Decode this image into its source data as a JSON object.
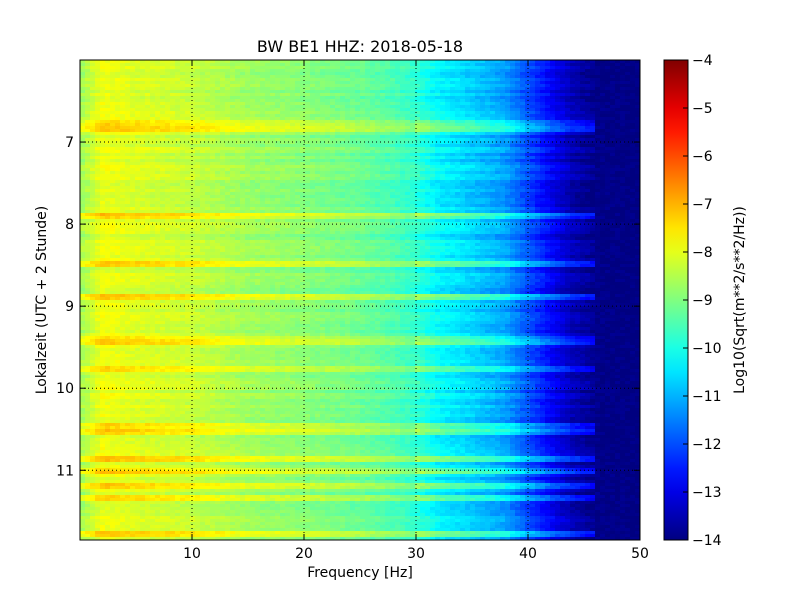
{
  "chart_data": {
    "type": "heatmap",
    "title": "BW BE1 HHZ: 2018-05-18",
    "xlabel": "Frequency [Hz]",
    "ylabel": "Lokalzeit (UTC + 2 Stunde)",
    "xlim": [
      0,
      50
    ],
    "ylim": [
      6.0,
      11.85
    ],
    "y_inverted": true,
    "x_ticks": [
      10,
      20,
      30,
      40,
      50
    ],
    "x_tick_labels": [
      "10",
      "20",
      "30",
      "40",
      "50"
    ],
    "y_ticks": [
      7,
      8,
      9,
      10,
      11
    ],
    "y_tick_labels": [
      "7",
      "8",
      "9",
      "10",
      "11"
    ],
    "grid": true,
    "colormap": "jet",
    "colorbar": {
      "label": "Log10(Sqrt(m**2/s**2/Hz))",
      "range": [
        -14,
        -4
      ],
      "ticks": [
        -4,
        -5,
        -6,
        -7,
        -8,
        -9,
        -10,
        -11,
        -12,
        -13,
        -14
      ],
      "tick_labels": [
        "−4",
        "−5",
        "−6",
        "−7",
        "−8",
        "−9",
        "−10",
        "−11",
        "−12",
        "−13",
        "−14"
      ]
    },
    "spectral_profile": {
      "frequency_hz": [
        0,
        2,
        5,
        10,
        15,
        20,
        25,
        28,
        30,
        32,
        35,
        38,
        40,
        42,
        44,
        46,
        50
      ],
      "log10_amplitude": [
        -8.7,
        -7.9,
        -8.1,
        -8.3,
        -8.7,
        -8.9,
        -9.2,
        -9.5,
        -9.8,
        -10.3,
        -10.7,
        -11.2,
        -12.0,
        -12.8,
        -13.5,
        -13.9,
        -14.0
      ]
    },
    "strong_bands_hour": [
      6.78,
      6.85,
      7.9,
      8.48,
      8.9,
      9.38,
      9.45,
      9.78,
      10.45,
      10.53,
      10.87,
      11.02,
      11.18,
      11.33,
      11.78
    ]
  }
}
